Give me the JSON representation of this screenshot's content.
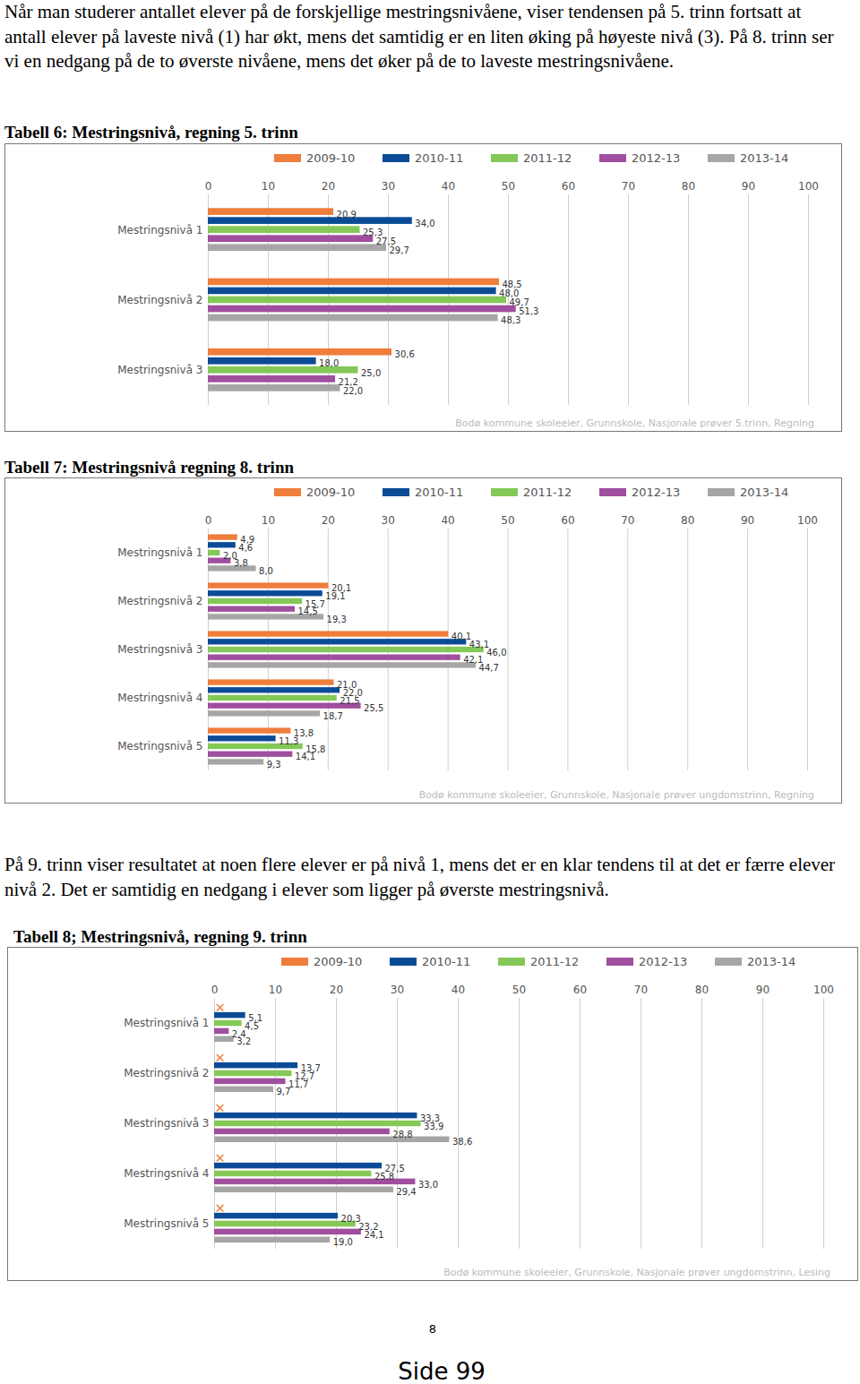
{
  "paragraphs": [
    "Når man studerer antallet elever på de forskjellige mestringsnivåene, viser tendensen på 5. trinn fortsatt at antall elever på laveste nivå (1) har økt, mens det samtidig er en liten øking på høyeste nivå (3). På 8. trinn ser vi en nedgang på de to øverste nivåene, mens det øker på de to laveste mestringsnivåene.",
    "På 9. trinn viser resultatet at noen flere elever er på nivå 1, mens det er en klar tendens til at det er færre elever nivå 2. Det er samtidig en nedgang i elever som ligger på øverste mestringsnivå."
  ],
  "page_number": "8",
  "footer": "Side 99",
  "chart_data": [
    {
      "type": "bar",
      "orientation": "horizontal",
      "title": "Tabell 6: Mestringsnivå, regning 5. trinn",
      "annotation": "Bodø kommune skoleeier, Grunnskole, Nasjonale prøver 5.trinn, Regning",
      "categories": [
        "Mestringsnivå 1",
        "Mestringsnivå 2",
        "Mestringsnivå 3"
      ],
      "series": [
        {
          "name": "2009-10",
          "color": "#ef7d3b",
          "values": [
            20.9,
            48.5,
            30.6
          ],
          "value_labels": [
            "20,9",
            "48,5",
            "30,6"
          ]
        },
        {
          "name": "2010-11",
          "color": "#0b4b96",
          "values": [
            34.0,
            48.0,
            18.0
          ],
          "value_labels": [
            "34,0",
            "48,0",
            "18,0"
          ]
        },
        {
          "name": "2011-12",
          "color": "#84c857",
          "values": [
            25.3,
            49.7,
            25.0
          ],
          "value_labels": [
            "25,3",
            "49,7",
            "25,0"
          ]
        },
        {
          "name": "2012-13",
          "color": "#a04e9e",
          "values": [
            27.5,
            51.3,
            21.2
          ],
          "value_labels": [
            "27,5",
            "51,3",
            "21,2"
          ]
        },
        {
          "name": "2013-14",
          "color": "#a6a6a6",
          "values": [
            29.7,
            48.3,
            22.0
          ],
          "value_labels": [
            "29,7",
            "48,3",
            "22,0"
          ]
        }
      ],
      "xlim": [
        0,
        100
      ],
      "xticks": [
        0,
        10,
        20,
        30,
        40,
        50,
        60,
        70,
        80,
        90,
        100
      ],
      "grid": true,
      "data_labels": true,
      "legend": "top"
    },
    {
      "type": "bar",
      "orientation": "horizontal",
      "title": "Tabell 7: Mestringsnivå regning 8. trinn",
      "annotation": "Bodø kommune skoleeier, Grunnskole, Nasjonale prøver ungdomstrinn, Regning",
      "categories": [
        "Mestringsnivå 1",
        "Mestringsnivå 2",
        "Mestringsnivå 3",
        "Mestringsnivå 4",
        "Mestringsnivå 5"
      ],
      "series": [
        {
          "name": "2009-10",
          "color": "#ef7d3b",
          "values": [
            4.9,
            20.1,
            40.1,
            21.0,
            13.8
          ],
          "value_labels": [
            "4,9",
            "20,1",
            "40,1",
            "21,0",
            "13,8"
          ]
        },
        {
          "name": "2010-11",
          "color": "#0b4b96",
          "values": [
            4.6,
            19.1,
            43.1,
            22.0,
            11.3
          ],
          "value_labels": [
            "4,6",
            "19,1",
            "43,1",
            "22,0",
            "11,3"
          ]
        },
        {
          "name": "2011-12",
          "color": "#84c857",
          "values": [
            2.0,
            15.7,
            46.0,
            21.5,
            15.8
          ],
          "value_labels": [
            "2,0",
            "15,7",
            "46,0",
            "21,5",
            "15,8"
          ]
        },
        {
          "name": "2012-13",
          "color": "#a04e9e",
          "values": [
            3.8,
            14.5,
            42.1,
            25.5,
            14.1
          ],
          "value_labels": [
            "3,8",
            "14,5",
            "42,1",
            "25,5",
            "14,1"
          ]
        },
        {
          "name": "2013-14",
          "color": "#a6a6a6",
          "values": [
            8.0,
            19.3,
            44.7,
            18.7,
            9.3
          ],
          "value_labels": [
            "8,0",
            "19,3",
            "44,7",
            "18,7",
            "9,3"
          ]
        }
      ],
      "xlim": [
        0,
        100
      ],
      "xticks": [
        0,
        10,
        20,
        30,
        40,
        50,
        60,
        70,
        80,
        90,
        100
      ],
      "grid": true,
      "data_labels": true,
      "legend": "top"
    },
    {
      "type": "bar",
      "orientation": "horizontal",
      "title": "Tabell 8; Mestringsnivå, regning 9. trinn",
      "annotation": "Bodø kommune skoleeier, Grunnskole, Nasjonale prøver ungdomstrinn, Lesing",
      "categories": [
        "Mestringsnivå 1",
        "Mestringsnivå 2",
        "Mestringsnivå 3",
        "Mestringsnivå 4",
        "Mestringsnivå 5"
      ],
      "series": [
        {
          "name": "2009-10",
          "color": "#ef7d3b",
          "values": [
            null,
            null,
            null,
            null,
            null
          ],
          "value_labels": [
            null,
            null,
            null,
            null,
            null
          ]
        },
        {
          "name": "2010-11",
          "color": "#0b4b96",
          "values": [
            5.1,
            13.7,
            33.3,
            27.5,
            20.3
          ],
          "value_labels": [
            "5,1",
            "13,7",
            "33,3",
            "27,5",
            "20,3"
          ]
        },
        {
          "name": "2011-12",
          "color": "#84c857",
          "values": [
            4.5,
            12.7,
            33.9,
            25.8,
            23.2
          ],
          "value_labels": [
            "4,5",
            "12,7",
            "33,9",
            "25,8",
            "23,2"
          ]
        },
        {
          "name": "2012-13",
          "color": "#a04e9e",
          "values": [
            2.4,
            11.7,
            28.8,
            33.0,
            24.1
          ],
          "value_labels": [
            "2,4",
            "11,7",
            "28,8",
            "33,0",
            "24,1"
          ]
        },
        {
          "name": "2013-14",
          "color": "#a6a6a6",
          "values": [
            3.2,
            9.7,
            38.6,
            29.4,
            19.0
          ],
          "value_labels": [
            "3,2",
            "9,7",
            "38,6",
            "29,4",
            "19,0"
          ]
        }
      ],
      "xlim": [
        0,
        100
      ],
      "xticks": [
        0,
        10,
        20,
        30,
        40,
        50,
        60,
        70,
        80,
        90,
        100
      ],
      "grid": true,
      "data_labels": true,
      "legend": "top"
    }
  ]
}
